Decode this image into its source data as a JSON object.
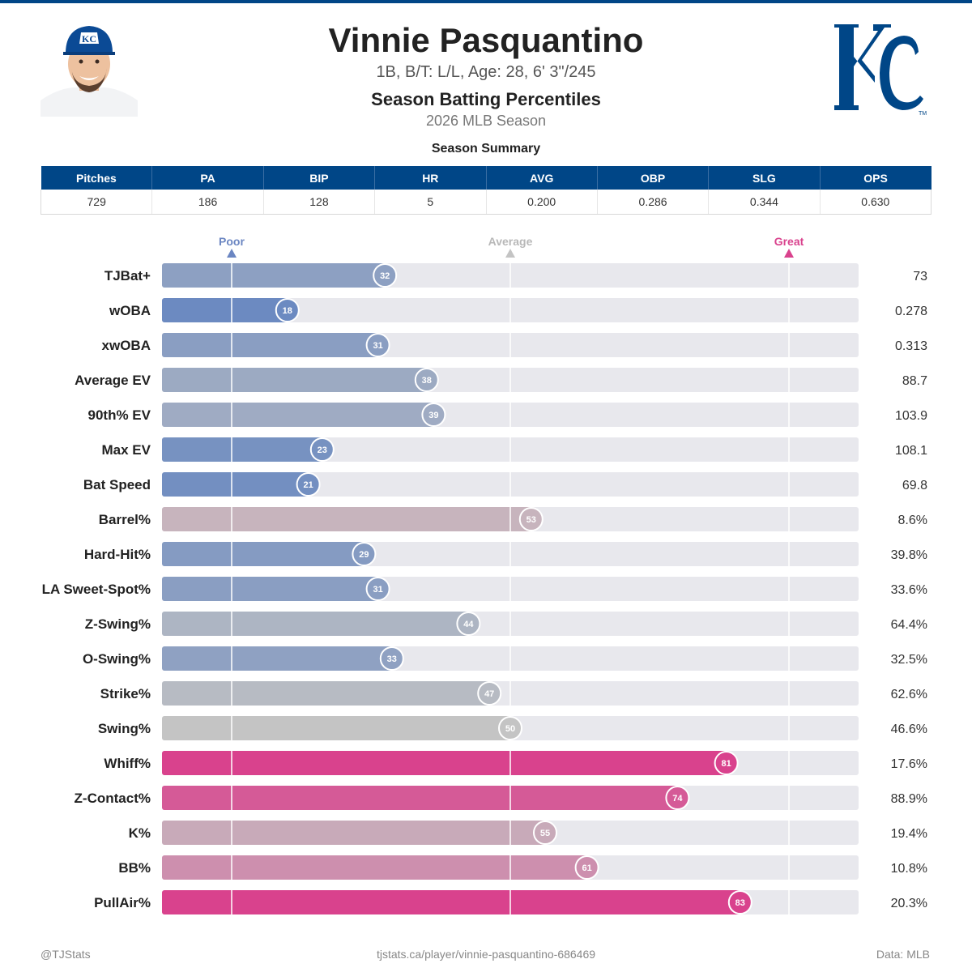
{
  "header": {
    "name": "Vinnie Pasquantino",
    "bio": "1B, B/T: L/L, Age: 28, 6' 3\"/245",
    "subtitle": "Season Batting Percentiles",
    "season": "2026 MLB Season"
  },
  "summary": {
    "title": "Season Summary",
    "columns": [
      "Pitches",
      "PA",
      "BIP",
      "HR",
      "AVG",
      "OBP",
      "SLG",
      "OPS"
    ],
    "values": [
      "729",
      "186",
      "128",
      "5",
      "0.200",
      "0.286",
      "0.344",
      "0.630"
    ]
  },
  "scale": {
    "poor": "Poor",
    "average": "Average",
    "great": "Great"
  },
  "colors": {
    "brand_blue": "#004687",
    "poor": "#5b7fc0",
    "great": "#d9428d",
    "neutral": "#c4c4c4",
    "track": "#e8e8ed"
  },
  "chart_data": {
    "type": "bar",
    "orientation": "horizontal",
    "xlim": [
      0,
      100
    ],
    "reference_lines": [
      10,
      50,
      90
    ],
    "rows": [
      {
        "label": "TJBat+",
        "percentile": 32,
        "value": "73"
      },
      {
        "label": "wOBA",
        "percentile": 18,
        "value": "0.278"
      },
      {
        "label": "xwOBA",
        "percentile": 31,
        "value": "0.313"
      },
      {
        "label": "Average EV",
        "percentile": 38,
        "value": "88.7"
      },
      {
        "label": "90th% EV",
        "percentile": 39,
        "value": "103.9"
      },
      {
        "label": "Max EV",
        "percentile": 23,
        "value": "108.1"
      },
      {
        "label": "Bat Speed",
        "percentile": 21,
        "value": "69.8"
      },
      {
        "label": "Barrel%",
        "percentile": 53,
        "value": "8.6%"
      },
      {
        "label": "Hard-Hit%",
        "percentile": 29,
        "value": "39.8%"
      },
      {
        "label": "LA Sweet-Spot%",
        "percentile": 31,
        "value": "33.6%"
      },
      {
        "label": "Z-Swing%",
        "percentile": 44,
        "value": "64.4%"
      },
      {
        "label": "O-Swing%",
        "percentile": 33,
        "value": "32.5%"
      },
      {
        "label": "Strike%",
        "percentile": 47,
        "value": "62.6%"
      },
      {
        "label": "Swing%",
        "percentile": 50,
        "value": "46.6%"
      },
      {
        "label": "Whiff%",
        "percentile": 81,
        "value": "17.6%"
      },
      {
        "label": "Z-Contact%",
        "percentile": 74,
        "value": "88.9%"
      },
      {
        "label": "K%",
        "percentile": 55,
        "value": "19.4%"
      },
      {
        "label": "BB%",
        "percentile": 61,
        "value": "10.8%"
      },
      {
        "label": "PullAir%",
        "percentile": 83,
        "value": "20.3%"
      }
    ]
  },
  "footer": {
    "left": "@TJStats",
    "center": "tjstats.ca/player/vinnie-pasquantino-686469",
    "right": "Data: MLB"
  }
}
